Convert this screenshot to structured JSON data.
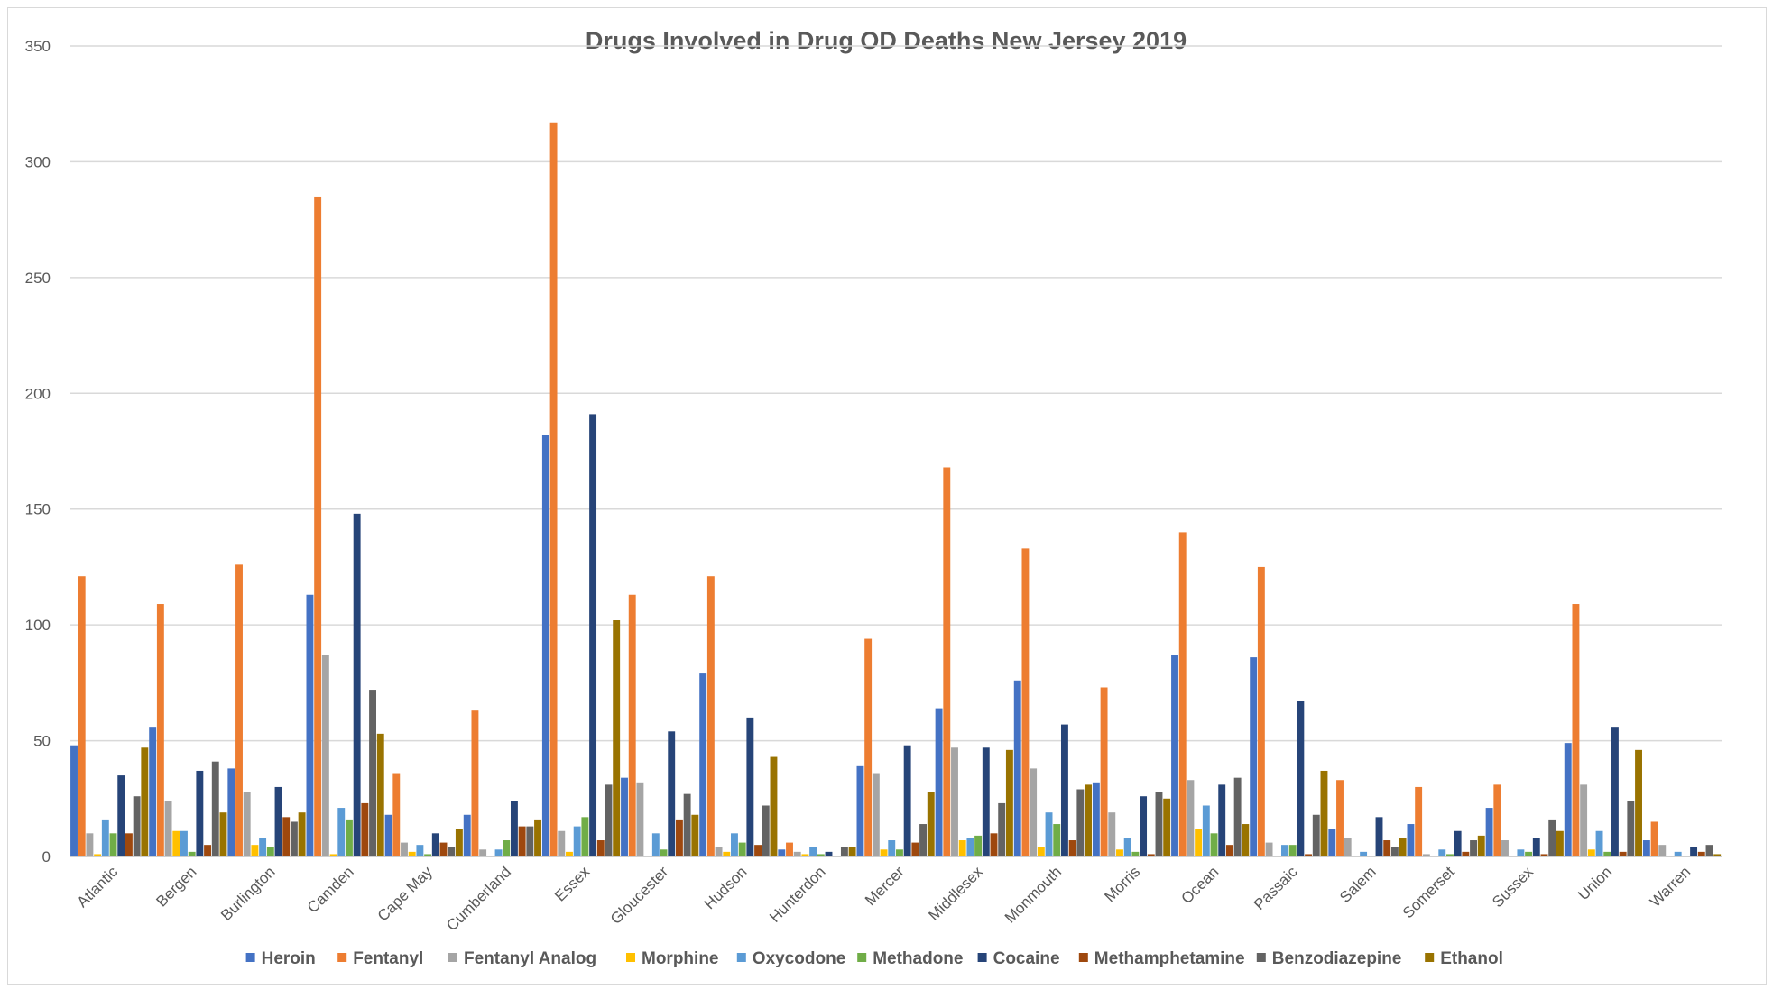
{
  "chart_data": {
    "type": "bar",
    "title": "Drugs Involved in Drug OD Deaths New Jersey 2019",
    "xlabel": "",
    "ylabel": "",
    "ylim": [
      0,
      350
    ],
    "yticks": [
      0,
      50,
      100,
      150,
      200,
      250,
      300,
      350
    ],
    "grid": true,
    "legend_position": "bottom",
    "categories": [
      "Atlantic",
      "Bergen",
      "Burlington",
      "Camden",
      "Cape May",
      "Cumberland",
      "Essex",
      "Gloucester",
      "Hudson",
      "Hunterdon",
      "Mercer",
      "Middlesex",
      "Monmouth",
      "Morris",
      "Ocean",
      "Passaic",
      "Salem",
      "Somerset",
      "Sussex",
      "Union",
      "Warren"
    ],
    "series": [
      {
        "name": "Heroin",
        "color": "#4472C4",
        "values": [
          48,
          56,
          38,
          113,
          18,
          18,
          182,
          34,
          79,
          3,
          39,
          64,
          76,
          32,
          87,
          86,
          12,
          14,
          21,
          49,
          7
        ]
      },
      {
        "name": "Fentanyl",
        "color": "#ED7D31",
        "values": [
          121,
          109,
          126,
          285,
          36,
          63,
          317,
          113,
          121,
          6,
          94,
          168,
          133,
          73,
          140,
          125,
          33,
          30,
          31,
          109,
          15
        ]
      },
      {
        "name": "Fentanyl Analog",
        "color": "#A5A5A5",
        "values": [
          10,
          24,
          28,
          87,
          6,
          3,
          11,
          32,
          4,
          2,
          36,
          47,
          38,
          19,
          33,
          6,
          8,
          1,
          7,
          31,
          5
        ]
      },
      {
        "name": "Morphine",
        "color": "#FFC000",
        "values": [
          1,
          11,
          5,
          1,
          2,
          0,
          2,
          0,
          2,
          1,
          3,
          7,
          4,
          3,
          12,
          0,
          0,
          0,
          0,
          3,
          0
        ]
      },
      {
        "name": "Oxycodone",
        "color": "#5B9BD5",
        "values": [
          16,
          11,
          8,
          21,
          5,
          3,
          13,
          10,
          10,
          4,
          7,
          8,
          19,
          8,
          22,
          5,
          2,
          3,
          3,
          11,
          2
        ]
      },
      {
        "name": "Methadone",
        "color": "#70AD47",
        "values": [
          10,
          2,
          4,
          16,
          1,
          7,
          17,
          3,
          6,
          1,
          3,
          9,
          14,
          2,
          10,
          5,
          0,
          1,
          2,
          2,
          0
        ]
      },
      {
        "name": "Cocaine",
        "color": "#264478",
        "values": [
          35,
          37,
          30,
          148,
          10,
          24,
          191,
          54,
          60,
          2,
          48,
          47,
          57,
          26,
          31,
          67,
          17,
          11,
          8,
          56,
          4
        ]
      },
      {
        "name": "Methamphetamine",
        "color": "#9E480E",
        "values": [
          10,
          5,
          17,
          23,
          6,
          13,
          7,
          16,
          5,
          0,
          6,
          10,
          7,
          1,
          5,
          1,
          7,
          2,
          1,
          2,
          2
        ]
      },
      {
        "name": "Benzodiazepine",
        "color": "#636363",
        "values": [
          26,
          41,
          15,
          72,
          4,
          13,
          31,
          27,
          22,
          4,
          14,
          23,
          29,
          28,
          34,
          18,
          4,
          7,
          16,
          24,
          5
        ]
      },
      {
        "name": "Ethanol",
        "color": "#997300",
        "values": [
          47,
          19,
          19,
          53,
          12,
          16,
          102,
          18,
          43,
          4,
          28,
          46,
          31,
          25,
          14,
          37,
          8,
          9,
          11,
          46,
          1
        ]
      }
    ]
  }
}
